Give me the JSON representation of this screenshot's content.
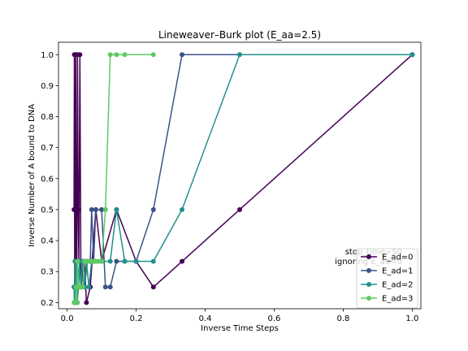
{
  "chart_data": {
    "type": "line",
    "title": "Lineweaver–Burk plot (E_aa=2.5)",
    "xlabel": "Inverse Time Steps",
    "ylabel": "Inverse Number of A bound to DNA",
    "xlim": [
      -0.025,
      1.025
    ],
    "ylim": [
      0.18,
      1.04
    ],
    "xticks": [
      "0.0",
      "0.2",
      "0.4",
      "0.6",
      "0.8",
      "1.0"
    ],
    "yticks": [
      "0.2",
      "0.3",
      "0.4",
      "0.5",
      "0.6",
      "0.7",
      "0.8",
      "0.9",
      "1.0"
    ],
    "grid": false,
    "legend_position": "lower right",
    "annotation": [
      "stop_time=50",
      "ignoring E_ad=0"
    ],
    "series": [
      {
        "name": "E_ad=0",
        "color": "#440154",
        "points": [
          [
            1.0,
            1.0
          ],
          [
            0.5,
            0.5
          ],
          [
            0.333,
            0.333
          ],
          [
            0.25,
            0.25
          ],
          [
            0.2,
            0.333
          ],
          [
            0.143,
            0.5
          ],
          [
            0.1,
            0.333
          ],
          [
            0.083,
            0.5
          ],
          [
            0.067,
            0.25
          ],
          [
            0.056,
            0.2
          ],
          [
            0.05,
            0.333
          ],
          [
            0.04,
            0.25
          ],
          [
            0.037,
            1.0
          ],
          [
            0.034,
            0.333
          ],
          [
            0.032,
            0.5
          ],
          [
            0.03,
            1.0
          ],
          [
            0.028,
            0.25
          ],
          [
            0.026,
            0.333
          ],
          [
            0.025,
            1.0
          ],
          [
            0.024,
            0.5
          ],
          [
            0.023,
            0.333
          ],
          [
            0.022,
            0.2
          ],
          [
            0.021,
            1.0
          ],
          [
            0.02,
            0.5
          ]
        ]
      },
      {
        "name": "E_ad=1",
        "color": "#3b528b",
        "points": [
          [
            1.0,
            1.0
          ],
          [
            0.333,
            1.0
          ],
          [
            0.25,
            0.5
          ],
          [
            0.2,
            0.333
          ],
          [
            0.167,
            0.333
          ],
          [
            0.143,
            0.333
          ],
          [
            0.125,
            0.25
          ],
          [
            0.111,
            0.25
          ],
          [
            0.1,
            0.5
          ],
          [
            0.083,
            0.5
          ],
          [
            0.077,
            0.333
          ],
          [
            0.071,
            0.5
          ],
          [
            0.067,
            0.333
          ],
          [
            0.059,
            0.333
          ],
          [
            0.05,
            0.25
          ],
          [
            0.045,
            0.333
          ],
          [
            0.04,
            0.25
          ],
          [
            0.036,
            0.333
          ],
          [
            0.033,
            0.25
          ],
          [
            0.029,
            0.2
          ],
          [
            0.026,
            0.333
          ],
          [
            0.024,
            0.25
          ],
          [
            0.022,
            0.2
          ],
          [
            0.02,
            0.25
          ]
        ]
      },
      {
        "name": "E_ad=2",
        "color": "#21918c",
        "points": [
          [
            1.0,
            1.0
          ],
          [
            0.5,
            1.0
          ],
          [
            0.333,
            0.5
          ],
          [
            0.25,
            0.333
          ],
          [
            0.2,
            0.333
          ],
          [
            0.167,
            0.333
          ],
          [
            0.143,
            0.5
          ],
          [
            0.125,
            0.333
          ],
          [
            0.1,
            0.333
          ],
          [
            0.083,
            0.333
          ],
          [
            0.071,
            0.333
          ],
          [
            0.063,
            0.25
          ],
          [
            0.056,
            0.333
          ],
          [
            0.05,
            0.25
          ],
          [
            0.045,
            0.333
          ],
          [
            0.04,
            0.25
          ],
          [
            0.036,
            0.333
          ],
          [
            0.033,
            0.25
          ],
          [
            0.029,
            0.2
          ],
          [
            0.027,
            0.333
          ],
          [
            0.025,
            0.2
          ],
          [
            0.023,
            0.333
          ],
          [
            0.021,
            0.2
          ],
          [
            0.02,
            0.25
          ]
        ]
      },
      {
        "name": "E_ad=3",
        "color": "#5ec962",
        "points": [
          [
            0.25,
            1.0
          ],
          [
            0.167,
            1.0
          ],
          [
            0.143,
            1.0
          ],
          [
            0.125,
            1.0
          ],
          [
            0.111,
            0.5
          ],
          [
            0.1,
            0.333
          ],
          [
            0.091,
            0.333
          ],
          [
            0.083,
            0.333
          ],
          [
            0.077,
            0.333
          ],
          [
            0.071,
            0.333
          ],
          [
            0.063,
            0.333
          ],
          [
            0.056,
            0.333
          ],
          [
            0.05,
            0.333
          ],
          [
            0.045,
            0.25
          ],
          [
            0.04,
            0.25
          ],
          [
            0.036,
            0.25
          ],
          [
            0.033,
            0.25
          ],
          [
            0.03,
            0.333
          ],
          [
            0.028,
            0.2
          ],
          [
            0.026,
            0.25
          ],
          [
            0.024,
            0.2
          ],
          [
            0.022,
            0.2
          ],
          [
            0.021,
            0.2
          ],
          [
            0.02,
            0.2
          ]
        ]
      }
    ]
  }
}
